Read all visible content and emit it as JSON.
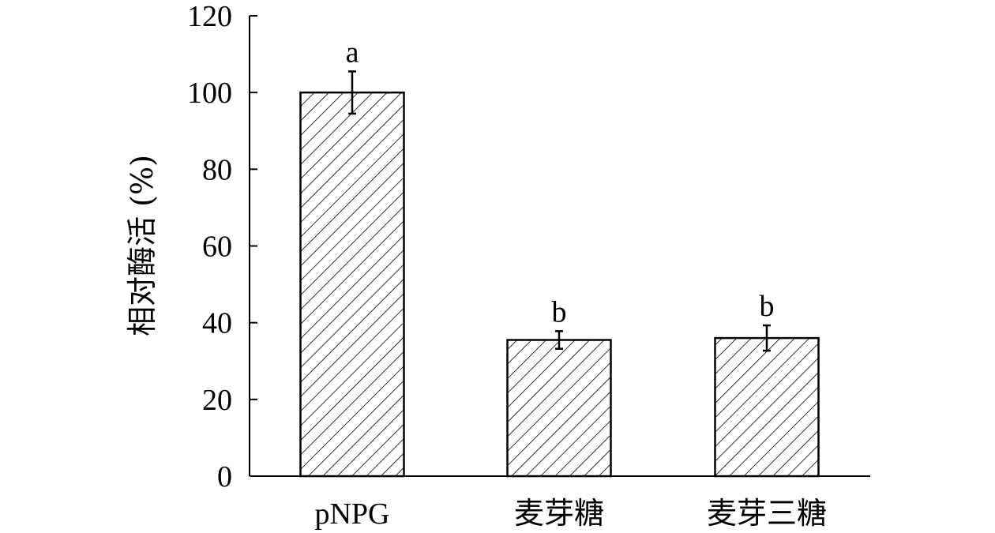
{
  "chart_data": {
    "type": "bar",
    "categories": [
      "pNPG",
      "麦芽糖",
      "麦芽三糖"
    ],
    "values": [
      100,
      35.5,
      36
    ],
    "errors": [
      5.5,
      2.3,
      3.3
    ],
    "significance": [
      "a",
      "b",
      "b"
    ],
    "ylabel": "相对酶活 (%)",
    "xlabel": "",
    "ylim": [
      0,
      120
    ],
    "yticks": [
      "0",
      "20",
      "40",
      "60",
      "80",
      "100",
      "120"
    ],
    "bar_fill": "hatched",
    "grid": false,
    "colors": {
      "stroke": "#000000",
      "background": "#ffffff"
    }
  }
}
